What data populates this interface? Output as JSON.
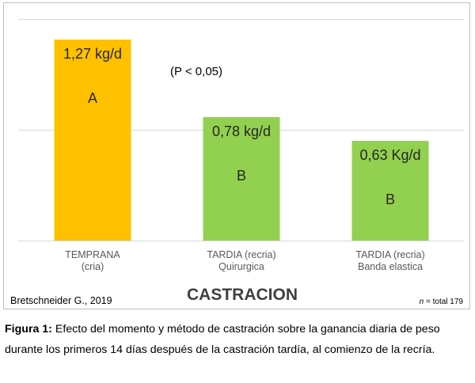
{
  "chart_data": {
    "type": "bar",
    "categories": [
      [
        "TEMPRANA",
        "(cria)"
      ],
      [
        "TARDIA (recria)",
        "Quirurgica"
      ],
      [
        "TARDIA (recria)",
        "Banda elastica"
      ]
    ],
    "values": [
      1.27,
      0.78,
      0.63
    ],
    "data_labels": [
      "1,27 kg/d",
      "0,78 kg/d",
      "0,63 Kg/d"
    ],
    "letters": [
      "A",
      "B",
      "B"
    ],
    "colors": [
      "#FFC000",
      "#92D050",
      "#92D050"
    ],
    "title": "CASTRACION",
    "annotation": "(P < 0,05)",
    "source": "Bretschneider G., 2019",
    "n_label": "n",
    "n_text": " = total 179",
    "ylim": [
      0,
      1.4
    ],
    "grid": true
  },
  "caption": {
    "lead": "Figura 1:",
    "text": " Efecto del momento y método de castración sobre la ganancia diaria de peso durante los primeros 14 días después de la castración tardía, al comienzo de la recría."
  }
}
